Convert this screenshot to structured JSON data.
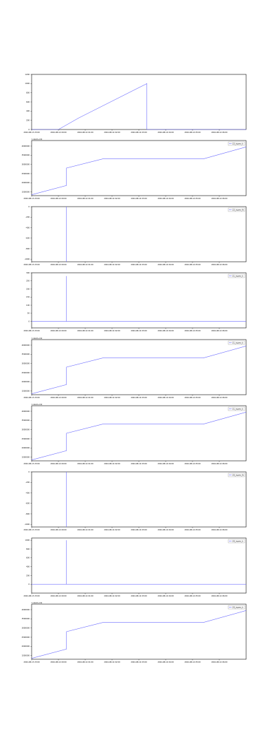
{
  "colors": {
    "series": "#6b6bff",
    "frame": "#000000"
  },
  "chart_data": [
    {
      "type": "line",
      "title": "",
      "xlabel": "",
      "ylabel": "",
      "y_offset_label": "",
      "legend": "",
      "xticks": [
        "2024-08-13 23:00",
        "2024-08-14 00:00",
        "2024-08-14 01:00",
        "2024-08-14 02:00",
        "2024-08-14 03:00",
        "2024-08-14 04:00",
        "2024-08-14 05:00",
        "2024-08-14 06:00"
      ],
      "yticks": [
        "0",
        "200",
        "400",
        "600",
        "800",
        "1000",
        "1200"
      ],
      "ylim": [
        0,
        1200
      ],
      "x": [
        0,
        1,
        1.75,
        4.3,
        4.3,
        8
      ],
      "y": [
        0,
        0,
        250,
        1000,
        0,
        0
      ]
    },
    {
      "type": "line",
      "title": "",
      "xlabel": "",
      "ylabel": "",
      "y_offset_label": "1.4e12+4.9",
      "legend": "[2]_sigma_b",
      "xticks": [
        "2024-08-13 23:00",
        "2024-08-14 00:00",
        "2024-08-14 01:00",
        "2024-08-14 02:00",
        "2024-08-14 03:00",
        "2024-08-14 04:00",
        "2024-08-14 05:00",
        "2024-08-14 06:00"
      ],
      "yticks": [
        "1500000",
        "2000000",
        "2500000",
        "3000000",
        "3500000",
        "4000000"
      ],
      "ylim": [
        1300000,
        4300000
      ],
      "x": [
        0,
        1.3,
        1.3,
        2.65,
        6.4,
        8
      ],
      "y": [
        1350000,
        1850000,
        2800000,
        3300000,
        3300000,
        3950000
      ]
    },
    {
      "type": "line",
      "title": "",
      "xlabel": "",
      "ylabel": "",
      "y_offset_label": "",
      "legend": "[2]_sigma_fb",
      "xticks": [
        "2024-08-13 23:00",
        "2024-08-14 00:00",
        "2024-08-14 01:00",
        "2024-08-14 02:00",
        "2024-08-14 03:00",
        "2024-08-14 04:00",
        "2024-08-14 05:00",
        "2024-08-14 06:00"
      ],
      "yticks": [
        "0",
        "-200",
        "-400",
        "-600",
        "-800",
        "-1000"
      ],
      "ylim": [
        -1050,
        0
      ],
      "x": [
        1.3,
        1.3
      ],
      "y": [
        0,
        -1050
      ]
    },
    {
      "type": "line",
      "title": "",
      "xlabel": "",
      "ylabel": "",
      "y_offset_label": "",
      "legend": "[1]_sigma_b",
      "xticks": [
        "2024-08-13 23:00",
        "2024-08-14 00:00",
        "2024-08-14 01:00",
        "2024-08-14 02:00",
        "2024-08-14 03:00",
        "2024-08-14 04:00",
        "2024-08-14 05:00",
        "2024-08-14 06:00"
      ],
      "yticks": [
        "0",
        "50",
        "100",
        "150",
        "200",
        "250",
        "300"
      ],
      "ylim": [
        -40,
        300
      ],
      "x": [
        0,
        1.3,
        1.3,
        1.3,
        8
      ],
      "y": [
        0,
        0,
        280,
        0,
        0
      ]
    },
    {
      "type": "line",
      "title": "",
      "xlabel": "",
      "ylabel": "",
      "y_offset_label": "1.4e12+4.9",
      "legend": "[1]_sigma_b",
      "xticks": [
        "2024-08-13 23:00",
        "2024-08-14 00:00",
        "2024-08-14 01:00",
        "2024-08-14 02:00",
        "2024-08-14 03:00",
        "2024-08-14 04:00",
        "2024-08-14 05:00",
        "2024-08-14 06:00"
      ],
      "yticks": [
        "1500000",
        "2000000",
        "2500000",
        "3000000",
        "3500000",
        "4000000"
      ],
      "ylim": [
        1300000,
        4300000
      ],
      "x": [
        0,
        1.3,
        1.3,
        2.65,
        6.4,
        8
      ],
      "y": [
        1350000,
        1850000,
        2800000,
        3300000,
        3300000,
        3950000
      ]
    },
    {
      "type": "line",
      "title": "",
      "xlabel": "",
      "ylabel": "",
      "y_offset_label": "1.4e12+4.9",
      "legend": "[1]_sigma_b",
      "xticks": [
        "2024-08-13 23:00",
        "2024-08-14 00:00",
        "2024-08-14 01:00",
        "2024-08-14 02:00",
        "2024-08-14 03:00",
        "2024-08-14 04:00",
        "2024-08-14 05:00",
        "2024-08-14 06:00"
      ],
      "yticks": [
        "1500000",
        "2000000",
        "2500000",
        "3000000",
        "3500000",
        "4000000"
      ],
      "ylim": [
        1300000,
        4300000
      ],
      "x": [
        0,
        1.3,
        1.3,
        2.65,
        6.4,
        8
      ],
      "y": [
        1350000,
        1850000,
        2800000,
        3300000,
        3300000,
        3950000
      ]
    },
    {
      "type": "line",
      "title": "",
      "xlabel": "",
      "ylabel": "",
      "y_offset_label": "",
      "legend": "[0]_sigma_fb",
      "xticks": [
        "2024-08-13 23:00",
        "2024-08-14 00:00",
        "2024-08-14 01:00",
        "2024-08-14 02:00",
        "2024-08-14 03:00",
        "2024-08-14 04:00",
        "2024-08-14 05:00",
        "2024-08-14 06:00"
      ],
      "yticks": [
        "0",
        "-200",
        "-400",
        "-600",
        "-800",
        "-1000"
      ],
      "ylim": [
        -1050,
        0
      ],
      "x": [
        1.3,
        1.3
      ],
      "y": [
        0,
        -1050
      ]
    },
    {
      "type": "line",
      "title": "",
      "xlabel": "",
      "ylabel": "",
      "y_offset_label": "",
      "legend": "[0]_sigma_b",
      "xticks": [
        "2024-08-13 23:00",
        "2024-08-14 00:00",
        "2024-08-14 01:00",
        "2024-08-14 02:00",
        "2024-08-14 03:00",
        "2024-08-14 04:00",
        "2024-08-14 05:00",
        "2024-08-14 06:00"
      ],
      "yticks": [
        "0",
        "200",
        "400",
        "600",
        "800",
        "1000"
      ],
      "ylim": [
        -200,
        1050
      ],
      "x": [
        0,
        1.3,
        1.3,
        1.3,
        8
      ],
      "y": [
        0,
        0,
        1000,
        0,
        0
      ]
    },
    {
      "type": "line",
      "title": "",
      "xlabel": "",
      "ylabel": "",
      "y_offset_label": "1.4e12+4.9",
      "legend": "[0]_sigma_b",
      "xticks": [
        "2024-08-13 23:00",
        "2024-08-14 00:00",
        "2024-08-14 01:00",
        "2024-08-14 02:00",
        "2024-08-14 03:00",
        "2024-08-14 04:00",
        "2024-08-14 05:00",
        "2024-08-14 06:00"
      ],
      "yticks": [
        "1500000",
        "2000000",
        "2500000",
        "3000000",
        "3500000",
        "4000000"
      ],
      "ylim": [
        1300000,
        4300000
      ],
      "x": [
        0,
        1.3,
        1.3,
        2.65,
        6.4,
        8
      ],
      "y": [
        1350000,
        1850000,
        2800000,
        3300000,
        3300000,
        3950000
      ]
    }
  ]
}
